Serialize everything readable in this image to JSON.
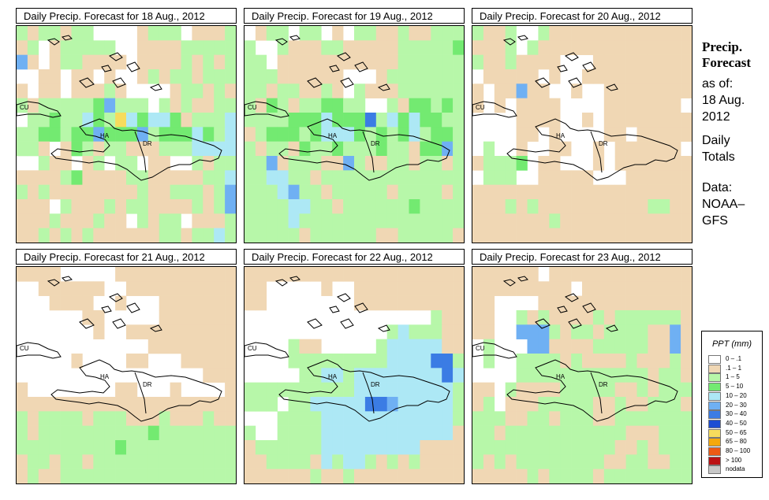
{
  "colors": {
    "bin_0_1": "#ffffff",
    "bin_01_1": "#f0d7b4",
    "bin_1_5": "#b7f7a9",
    "bin_5_10": "#73ea71",
    "bin_10_20": "#ade8f5",
    "bin_20_30": "#6fb0f3",
    "bin_30_40": "#3b7ce4",
    "bin_40_50": "#1d4dd3",
    "bin_50_65": "#f6dc5d",
    "bin_65_80": "#f5a90c",
    "bin_80_100": "#ec5a15",
    "bin_over_100": "#bb1114",
    "bin_nodata": "#c8c8c8"
  },
  "map_labels": {
    "cuba": "CU",
    "haiti": "HA",
    "dominican_republic": "DR"
  },
  "panels": [
    {
      "title": "Daily Precip. Forecast for  18 Aug., 2012",
      "date": "18 Aug., 2012"
    },
    {
      "title": "Daily Precip. Forecast for  19 Aug., 2012",
      "date": "19 Aug., 2012"
    },
    {
      "title": "Daily Precip. Forecast for  20 Aug., 2012",
      "date": "20 Aug., 2012"
    },
    {
      "title": "Daily Precip. Forecast for  21 Aug., 2012",
      "date": "21 Aug., 2012"
    },
    {
      "title": "Daily Precip. Forecast for  22 Aug., 2012",
      "date": "22 Aug., 2012"
    },
    {
      "title": "Daily Precip. Forecast for  23 Aug., 2012",
      "date": "23 Aug., 2012"
    }
  ],
  "sidebar": {
    "title_line1": "Precip.",
    "title_line2": "Forecast",
    "asof_label": "as of:",
    "asof_date1": "18 Aug.",
    "asof_date2": "2012",
    "totals1": "Daily",
    "totals2": "Totals",
    "data1": "Data:",
    "data2": "NOAA–",
    "data3": "GFS"
  },
  "legend": {
    "title": "PPT (mm)",
    "items": [
      {
        "label": "0 – .1",
        "color": "#ffffff"
      },
      {
        "label": ".1 – 1",
        "color": "#f0d7b4"
      },
      {
        "label": "1 – 5",
        "color": "#b7f7a9"
      },
      {
        "label": "5 – 10",
        "color": "#73ea71"
      },
      {
        "label": "10 – 20",
        "color": "#ade8f5"
      },
      {
        "label": "20 – 30",
        "color": "#6fb0f3"
      },
      {
        "label": "30 – 40",
        "color": "#3b7ce4"
      },
      {
        "label": "40 – 50",
        "color": "#1d4dd3"
      },
      {
        "label": "50 – 65",
        "color": "#f6dc5d"
      },
      {
        "label": "65 – 80",
        "color": "#f5a90c"
      },
      {
        "label": "80 – 100",
        "color": "#ec5a15"
      },
      {
        "label": "> 100",
        "color": "#bb1114"
      },
      {
        "label": "nodata",
        "color": "#c8c8c8"
      }
    ]
  },
  "forecast_grids": {
    "legend_codes": "0: 0-.1, 1: .1-1, 2: 1-5, 3: 5-10, 4: 10-20, 5: 20-30, 6: 30-40, 7: 40-50, 8: 50-65",
    "panels": [
      [
        "21221220000122201112",
        "12012222200111122222",
        "51012211110111121212",
        "00110110100121221222",
        "10110111210000122121",
        "21222223522202121122",
        "02232243284344312224",
        "22332335333523334324",
        "22101321221112224444",
        "00211012022011002122",
        "11112311112211111224",
        "21211111111211222125",
        "11102111212211112125",
        "11121112110212201112",
        "11212121111112212242"
      ],
      [
        "01220220102211211222",
        "20021112211111222223",
        "22011111111111222222",
        "22211111100012222222",
        "22122112102111222222",
        "21321223322002133232",
        "22223334333624343322",
        "12333234443232342332",
        "21221322322232213352",
        "22512221152112212212",
        "22442212222222222222",
        "22245221222221222212",
        "22224422122222232222",
        "22224222222222222222",
        "22222122222211222221"
      ],
      [
        "21120021111111111111",
        "11120211111111111111",
        "21121111000111111111",
        "01111101001111111111",
        "10115110010011111111",
        "10101111000011111110",
        "00001111001011111111",
        "00001101000011011111",
        "02001001100101111110",
        "12223011000101111111",
        "02220011111000111111",
        "11111111111111111111",
        "11121211111111112211",
        "11111112111111111111",
        "11111111111111111111"
      ],
      [
        "11110000011111111111",
        "00111111001111111111",
        "00011110010001111111",
        "00000011000001111111",
        "00000001001111111111",
        "00000000000011111111",
        "00000100001100011111",
        "00000000000000000111",
        "10000000011000100001",
        "11111111111111111111",
        "21222212221112111211",
        "21222222222232222222",
        "22222222232222222222",
        "12212212222222222222",
        "12112222222222222222"
      ],
      [
        "11111111111111111111",
        "11000001001111111111",
        "11000000001111111111",
        "00000000000000000211",
        "00000000000002422211",
        "00002110000024444411",
        "00002222222224444662",
        "00000224424444444464",
        "22222222224444444442",
        "22202244444665444442",
        "00022224444444444442",
        "20022224444444444441",
        "12222224444444441111",
        "11222214244212121111",
        "11111121121111111111"
      ],
      [
        "11111101111111111111",
        "11111111101111111111",
        "11000011111111111111",
        "11002121111212222221",
        "11005552122122221151",
        "02000551111222221151",
        "02002222121111211121",
        "00002222222222221221",
        "11021111222221121222",
        "12011122222112112221",
        "22211221222112222222",
        "22122222222222111222",
        "22222222222221121222",
        "21212222222211221122",
        "11111212222122222222"
      ]
    ]
  }
}
